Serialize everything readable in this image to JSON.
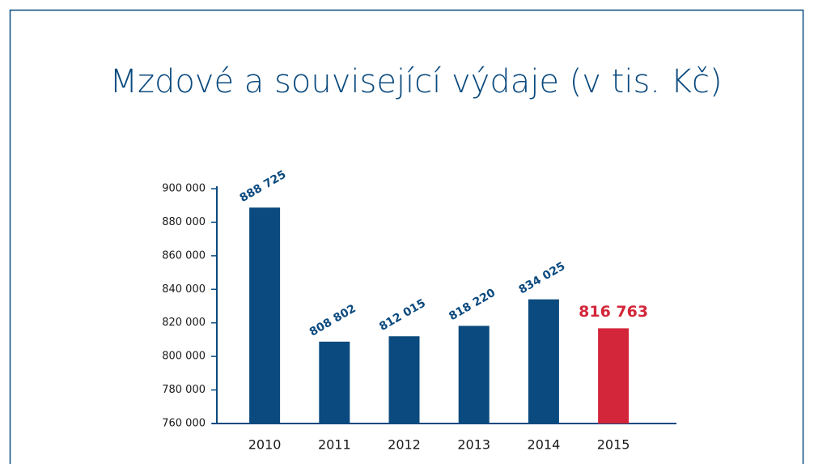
{
  "chart_data": {
    "type": "bar",
    "title": "Mzdové a související výdaje (v tis. Kč)",
    "categories": [
      "2010",
      "2011",
      "2012",
      "2013",
      "2014",
      "2015"
    ],
    "values": [
      888725,
      808802,
      812015,
      818220,
      834025,
      816763
    ],
    "value_labels": [
      "888 725",
      "808 802",
      "812 015",
      "818 220",
      "834 025",
      "816 763"
    ],
    "colors": [
      "#0b4a7e",
      "#0b4a7e",
      "#0b4a7e",
      "#0b4a7e",
      "#0b4a7e",
      "#d3263a"
    ],
    "ylim": [
      760000,
      900000
    ],
    "yticks": [
      {
        "value": 760000,
        "label": "760 000"
      },
      {
        "value": 780000,
        "label": "780 000"
      },
      {
        "value": 800000,
        "label": "800 000"
      },
      {
        "value": 820000,
        "label": "820 000"
      },
      {
        "value": 840000,
        "label": "840 000"
      },
      {
        "value": 860000,
        "label": "860 000"
      },
      {
        "value": 880000,
        "label": "880 000"
      },
      {
        "value": 900000,
        "label": "900 000"
      }
    ],
    "grid": false
  }
}
